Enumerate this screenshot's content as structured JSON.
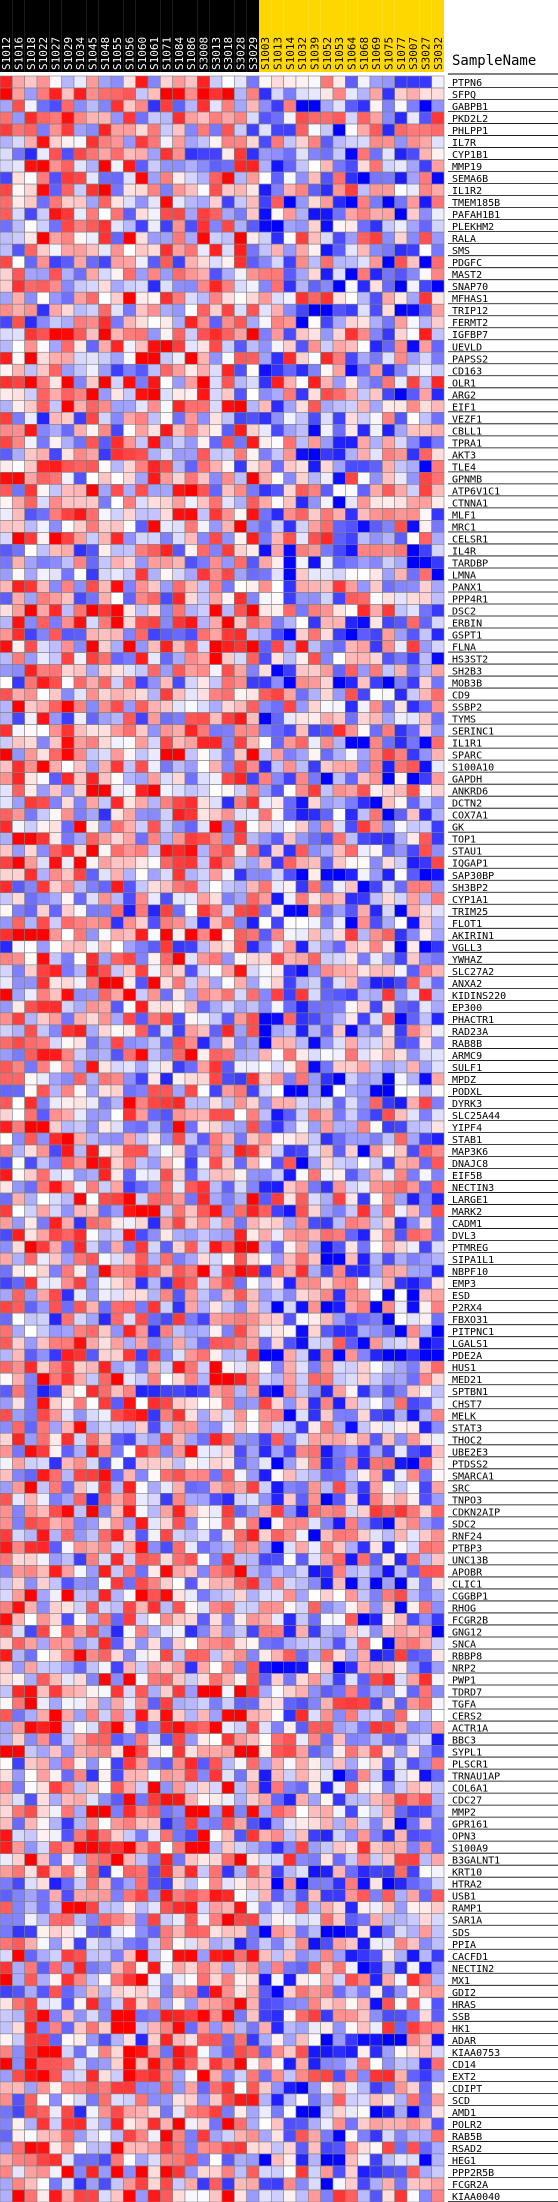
{
  "chart_data": {
    "type": "heatmap",
    "corner_label": "SampleName",
    "columns": [
      {
        "label": "S1012",
        "group": 0
      },
      {
        "label": "S1016",
        "group": 0
      },
      {
        "label": "S1018",
        "group": 0
      },
      {
        "label": "S1022",
        "group": 0
      },
      {
        "label": "S1027",
        "group": 0
      },
      {
        "label": "S1029",
        "group": 0
      },
      {
        "label": "S1034",
        "group": 0
      },
      {
        "label": "S1045",
        "group": 0
      },
      {
        "label": "S1048",
        "group": 0
      },
      {
        "label": "S1055",
        "group": 0
      },
      {
        "label": "S1056",
        "group": 0
      },
      {
        "label": "S1060",
        "group": 0
      },
      {
        "label": "S1061",
        "group": 0
      },
      {
        "label": "S1071",
        "group": 0
      },
      {
        "label": "S1084",
        "group": 0
      },
      {
        "label": "S1086",
        "group": 0
      },
      {
        "label": "S3008",
        "group": 0
      },
      {
        "label": "S3013",
        "group": 0
      },
      {
        "label": "S3018",
        "group": 0
      },
      {
        "label": "S3028",
        "group": 0
      },
      {
        "label": "S3029",
        "group": 0
      },
      {
        "label": "S1003",
        "group": 1
      },
      {
        "label": "S1013",
        "group": 1
      },
      {
        "label": "S1014",
        "group": 1
      },
      {
        "label": "S1032",
        "group": 1
      },
      {
        "label": "S1039",
        "group": 1
      },
      {
        "label": "S1052",
        "group": 1
      },
      {
        "label": "S1053",
        "group": 1
      },
      {
        "label": "S1064",
        "group": 1
      },
      {
        "label": "S1068",
        "group": 1
      },
      {
        "label": "S1069",
        "group": 1
      },
      {
        "label": "S1075",
        "group": 1
      },
      {
        "label": "S1077",
        "group": 1
      },
      {
        "label": "S3007",
        "group": 1
      },
      {
        "label": "S3027",
        "group": 1
      },
      {
        "label": "S3032",
        "group": 1
      }
    ],
    "group_colors": [
      "#000000",
      "#ffd700"
    ],
    "rows": [
      "PTPN6",
      "SFPQ",
      "GABPB1",
      "PKD2L2",
      "PHLPP1",
      "IL7R",
      "CYP1B1",
      "MMP19",
      "SEMA6B",
      "IL1R2",
      "TMEM185B",
      "PAFAH1B1",
      "PLEKHM2",
      "RALA",
      "SMS",
      "PDGFC",
      "MAST2",
      "SNAP70",
      "MFHAS1",
      "TRIP12",
      "FERMT2",
      "IGFBP7",
      "UEVLD",
      "PAPSS2",
      "CD163",
      "OLR1",
      "ARG2",
      "EIF1",
      "VEZF1",
      "CBLL1",
      "TPRA1",
      "AKT3",
      "TLE4",
      "GPNMB",
      "ATP6V1C1",
      "CTNNA1",
      "MLF1",
      "MRC1",
      "CELSR1",
      "IL4R",
      "TARDBP",
      "LMNA",
      "PANX1",
      "PPP4R1",
      "DSC2",
      "ERBIN",
      "GSPT1",
      "FLNA",
      "HS3ST2",
      "SH2B3",
      "MOB3B",
      "CD9",
      "SSBP2",
      "TYMS",
      "SERINC1",
      "IL1R1",
      "SPARC",
      "S100A10",
      "GAPDH",
      "ANKRD6",
      "DCTN2",
      "COX7A1",
      "GK",
      "TOP1",
      "STAU1",
      "IQGAP1",
      "SAP30BP",
      "SH3BP2",
      "CYP1A1",
      "TRIM25",
      "FLOT1",
      "AKIRIN1",
      "VGLL3",
      "YWHAZ",
      "SLC27A2",
      "ANXA2",
      "KIDINS220",
      "EP300",
      "PHACTR1",
      "RAD23A",
      "RAB8B",
      "ARMC9",
      "SULF1",
      "MPDZ",
      "PODXL",
      "DYRK3",
      "SLC25A44",
      "YIPF4",
      "STAB1",
      "MAP3K6",
      "DNAJC8",
      "EIF5B",
      "NECTIN3",
      "LARGE1",
      "MARK2",
      "CADM1",
      "DVL3",
      "PTMREG",
      "SIPA1L1",
      "NBPF10",
      "EMP3",
      "ESD",
      "P2RX4",
      "FBXO31",
      "PITPNC1",
      "LGALS1",
      "PDE2A",
      "HUS1",
      "MED21",
      "SPTBN1",
      "CHST7",
      "MELK",
      "STAT3",
      "THOC2",
      "UBE2E3",
      "PTDSS2",
      "SMARCA1",
      "SRC",
      "TNPO3",
      "CDKN2AIP",
      "SDC2",
      "RNF24",
      "PTBP3",
      "UNC13B",
      "APOBR",
      "CLIC1",
      "CGGBP1",
      "RHOG",
      "FCGR2B",
      "GNG12",
      "SNCA",
      "RBBP8",
      "NRP2",
      "PWP1",
      "TDRD7",
      "TGFA",
      "CERS2",
      "ACTR1A",
      "BBC3",
      "SYPL1",
      "PLSCR1",
      "TRNAU1AP",
      "COL6A1",
      "CDC27",
      "MMP2",
      "GPR161",
      "OPN3",
      "S100A9",
      "B3GALNT1",
      "KRT10",
      "HTRA2",
      "USB1",
      "RAMP1",
      "SAR1A",
      "SDS",
      "PPIA",
      "CACFD1",
      "NECTIN2",
      "MX1",
      "GDI2",
      "HRAS",
      "SSB",
      "HK1",
      "ADAR",
      "KIAA0753",
      "CD14",
      "EXT2",
      "CDIPT",
      "SCD",
      "AMD1",
      "POLR2",
      "RAB5B",
      "RSAD2",
      "HEG1",
      "PPP2R5B",
      "FCGR2A",
      "KIAA0040"
    ],
    "value_range": [
      -3,
      3
    ],
    "color_scale": {
      "low": "#0000ff",
      "mid": "#ffffff",
      "high": "#ff0000"
    },
    "grid": true,
    "seed": 20240611
  }
}
